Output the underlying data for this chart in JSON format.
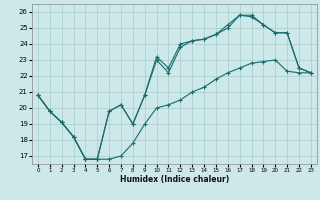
{
  "xlabel": "Humidex (Indice chaleur)",
  "background_color": "#cce8e8",
  "grid_color": "#aacccc",
  "line_color": "#1a6b6b",
  "xlim": [
    -0.5,
    23.5
  ],
  "ylim": [
    16.5,
    26.5
  ],
  "xticks": [
    0,
    1,
    2,
    3,
    4,
    5,
    6,
    7,
    8,
    9,
    10,
    11,
    12,
    13,
    14,
    15,
    16,
    17,
    18,
    19,
    20,
    21,
    22,
    23
  ],
  "yticks": [
    17,
    18,
    19,
    20,
    21,
    22,
    23,
    24,
    25,
    26
  ],
  "line1_x": [
    0,
    1,
    2,
    3,
    4,
    5,
    6,
    7,
    8,
    9,
    10,
    11,
    12,
    13,
    14,
    15,
    16,
    17,
    18,
    19,
    20,
    21,
    22,
    23
  ],
  "line1_y": [
    20.8,
    19.8,
    19.1,
    18.2,
    16.8,
    16.8,
    16.8,
    17.0,
    17.8,
    19.0,
    20.0,
    20.2,
    20.5,
    21.0,
    21.3,
    21.8,
    22.2,
    22.5,
    22.8,
    22.9,
    23.0,
    22.3,
    22.2,
    22.2
  ],
  "line2_x": [
    0,
    1,
    2,
    3,
    4,
    5,
    6,
    7,
    8,
    9,
    10,
    11,
    12,
    13,
    14,
    15,
    16,
    17,
    18,
    19,
    20,
    21,
    22,
    23
  ],
  "line2_y": [
    20.8,
    19.8,
    19.1,
    18.2,
    16.8,
    16.8,
    19.8,
    20.2,
    19.0,
    20.8,
    23.0,
    22.2,
    23.8,
    24.2,
    24.3,
    24.6,
    25.0,
    25.8,
    25.7,
    25.2,
    24.7,
    24.7,
    22.5,
    22.2
  ],
  "line3_x": [
    0,
    1,
    2,
    3,
    4,
    5,
    6,
    7,
    8,
    9,
    10,
    11,
    12,
    13,
    14,
    15,
    16,
    17,
    18,
    19,
    20,
    21,
    22,
    23
  ],
  "line3_y": [
    20.8,
    19.8,
    19.1,
    18.2,
    16.8,
    16.8,
    19.8,
    20.2,
    19.0,
    20.8,
    23.2,
    22.5,
    24.0,
    24.2,
    24.3,
    24.6,
    25.2,
    25.8,
    25.8,
    25.2,
    24.7,
    24.7,
    22.5,
    22.2
  ]
}
